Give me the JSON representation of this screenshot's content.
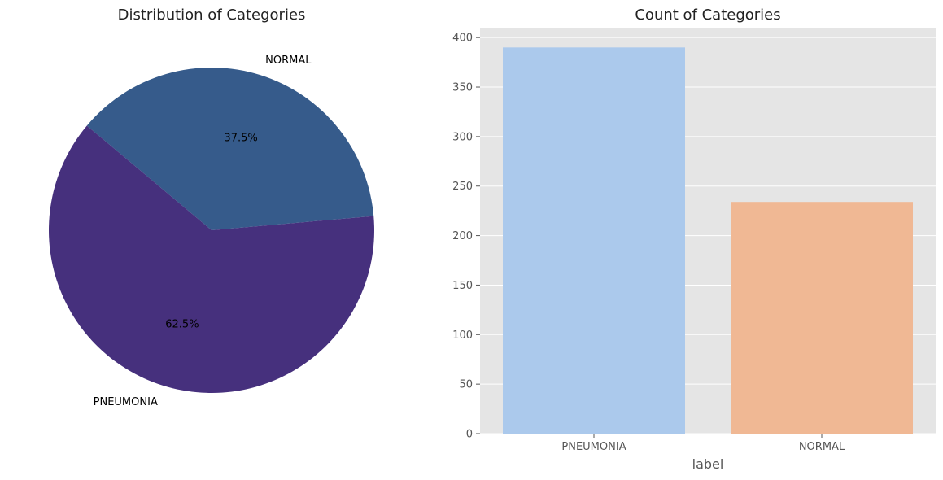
{
  "chart_data": [
    {
      "type": "pie",
      "title": "Distribution of Categories",
      "slices": [
        {
          "label": "NORMAL",
          "percent_label": "37.5%",
          "value": 37.5,
          "color": "#365B8B"
        },
        {
          "label": "PNEUMONIA",
          "percent_label": "62.5%",
          "value": 62.5,
          "color": "#46307D"
        }
      ]
    },
    {
      "type": "bar",
      "title": "Count of Categories",
      "categories": [
        "PNEUMONIA",
        "NORMAL"
      ],
      "values": [
        390,
        234
      ],
      "colors": [
        "#ABC9EC",
        "#F0B894"
      ],
      "xlabel": "label",
      "ylabel": "",
      "ylim": [
        0,
        410
      ],
      "yticks": [
        0,
        50,
        100,
        150,
        200,
        250,
        300,
        350,
        400
      ],
      "grid": true,
      "background": "#E5E5E5"
    }
  ]
}
